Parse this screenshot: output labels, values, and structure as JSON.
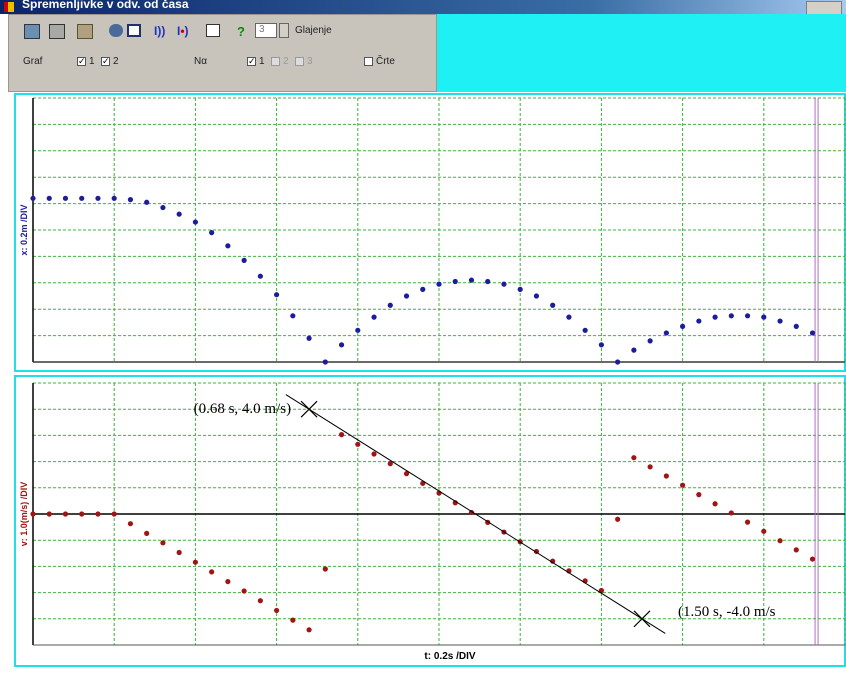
{
  "window": {
    "title": "Spremenljivke v odv. od časa",
    "toolbar": {
      "spin_value": "3",
      "smoothing_label": "Glajenje",
      "graph_label": "Graf",
      "graph_1": "1",
      "graph_2": "2",
      "n_label": "Nα",
      "n_1": "1",
      "n_2": "2",
      "n_3": "3",
      "lines_label": "Črte"
    }
  },
  "chart_data": [
    {
      "type": "scatter",
      "y_label": "x: 0.2m /DIV",
      "color": "#1c1c9c",
      "grid": true,
      "cursor_x": 1.93,
      "x": [
        0,
        0.04,
        0.08,
        0.12,
        0.16,
        0.2,
        0.24,
        0.28,
        0.32,
        0.36,
        0.4,
        0.44,
        0.48,
        0.52,
        0.56,
        0.6,
        0.64,
        0.68,
        0.72,
        0.76,
        0.8,
        0.84,
        0.88,
        0.92,
        0.96,
        1,
        1.04,
        1.08,
        1.12,
        1.16,
        1.2,
        1.24,
        1.28,
        1.32,
        1.36,
        1.4,
        1.44,
        1.48,
        1.52,
        1.56,
        1.6,
        1.64,
        1.68,
        1.72,
        1.76,
        1.8,
        1.84,
        1.88,
        1.92
      ],
      "values": [
        1.24,
        1.24,
        1.24,
        1.24,
        1.24,
        1.24,
        1.23,
        1.21,
        1.17,
        1.12,
        1.06,
        0.98,
        0.88,
        0.77,
        0.65,
        0.51,
        0.35,
        0.18,
        0,
        0.13,
        0.24,
        0.34,
        0.43,
        0.5,
        0.55,
        0.59,
        0.61,
        0.62,
        0.61,
        0.59,
        0.55,
        0.5,
        0.43,
        0.34,
        0.24,
        0.13,
        0,
        0.09,
        0.16,
        0.22,
        0.27,
        0.31,
        0.34,
        0.35,
        0.35,
        0.34,
        0.31,
        0.27,
        0.22
      ],
      "xlim": [
        0,
        2.0
      ],
      "xticks": [
        0.2,
        0.4,
        0.6,
        0.8,
        1.0,
        1.2,
        1.4,
        1.6,
        1.8,
        2.0
      ],
      "ylim": [
        0,
        2.0
      ],
      "yticks": [
        0.2,
        0.4,
        0.6,
        0.8,
        1.0,
        1.2,
        1.4,
        1.6,
        1.8,
        2.0
      ]
    },
    {
      "type": "scatter",
      "y_label": "v: 1.0(m/s) /DIV",
      "x_label": "t: 0.2s /DIV",
      "color": "#a01414",
      "grid": true,
      "cursor_x": 1.93,
      "x": [
        0,
        0.04,
        0.08,
        0.12,
        0.16,
        0.2,
        0.24,
        0.28,
        0.32,
        0.36,
        0.4,
        0.44,
        0.48,
        0.52,
        0.56,
        0.6,
        0.64,
        0.68,
        0.72,
        0.76,
        0.8,
        0.84,
        0.88,
        0.92,
        0.96,
        1,
        1.04,
        1.08,
        1.12,
        1.16,
        1.2,
        1.24,
        1.28,
        1.32,
        1.36,
        1.4,
        1.44,
        1.48,
        1.52,
        1.56,
        1.6,
        1.64,
        1.68,
        1.72,
        1.76,
        1.8,
        1.84,
        1.88,
        1.92
      ],
      "values": [
        0,
        0,
        0,
        0,
        0,
        0,
        -0.37,
        -0.74,
        -1.1,
        -1.47,
        -1.84,
        -2.21,
        -2.58,
        -2.94,
        -3.31,
        -3.68,
        -4.05,
        -4.42,
        -2.1,
        3.03,
        2.66,
        2.29,
        1.92,
        1.54,
        1.17,
        0.8,
        0.43,
        0.06,
        -0.32,
        -0.69,
        -1.06,
        -1.43,
        -1.8,
        -2.17,
        -2.55,
        -2.92,
        -0.2,
        2.15,
        1.8,
        1.45,
        1.1,
        0.74,
        0.39,
        0.04,
        -0.31,
        -0.66,
        -1.02,
        -1.37,
        -1.72
      ],
      "xlim": [
        0,
        2.0
      ],
      "xticks": [
        0.2,
        0.4,
        0.6,
        0.8,
        1.0,
        1.2,
        1.4,
        1.6,
        1.8,
        2.0
      ],
      "ylim": [
        -5,
        5
      ],
      "yticks": [
        -5,
        -4,
        -3,
        -2,
        -1,
        1,
        2,
        3,
        4,
        5
      ],
      "annotations": [
        {
          "text": "(0.68 s, 4.0 m/s)",
          "x": 0.68,
          "y": 4.0
        },
        {
          "text": "(1.50 s, -4.0 m/s",
          "x": 1.5,
          "y": -4.0
        }
      ]
    }
  ]
}
